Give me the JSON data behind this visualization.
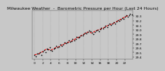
{
  "title": "Milwaukee Weather  -  Barometric Pressure per Hour (Last 24 Hours)",
  "bg_color": "#c8c8c8",
  "plot_bg": "#c8c8c8",
  "grid_color": "#888888",
  "dot_color": "#000000",
  "line_color": "#ff0000",
  "hours": [
    0,
    1,
    2,
    3,
    4,
    5,
    6,
    7,
    8,
    9,
    10,
    11,
    12,
    13,
    14,
    15,
    16,
    17,
    18,
    19,
    20,
    21,
    22,
    23
  ],
  "pressure": [
    29.45,
    29.47,
    29.52,
    29.58,
    29.55,
    29.6,
    29.63,
    29.68,
    29.72,
    29.75,
    29.8,
    29.85,
    29.9,
    29.95,
    29.93,
    29.98,
    30.01,
    30.05,
    30.1,
    30.13,
    30.18,
    30.23,
    30.28,
    30.32
  ],
  "scatter_hours": [
    0.0,
    0.3,
    0.7,
    1.0,
    1.3,
    1.7,
    2.0,
    2.3,
    2.7,
    3.0,
    3.3,
    3.7,
    4.0,
    4.3,
    4.7,
    5.0,
    5.3,
    5.7,
    6.0,
    6.3,
    6.7,
    7.0,
    7.3,
    7.7,
    8.0,
    8.3,
    8.7,
    9.0,
    9.3,
    9.7,
    10.0,
    10.3,
    10.7,
    11.0,
    11.3,
    11.7,
    12.0,
    12.3,
    12.7,
    13.0,
    13.3,
    13.7,
    14.0,
    14.3,
    14.7,
    15.0,
    15.3,
    15.7,
    16.0,
    16.3,
    16.7,
    17.0,
    17.3,
    17.7,
    18.0,
    18.3,
    18.7,
    19.0,
    19.3,
    19.7,
    20.0,
    20.3,
    20.7,
    21.0,
    21.3,
    21.7,
    22.0,
    22.3,
    22.7,
    23.0,
    23.3,
    23.7
  ],
  "scatter_pressure": [
    29.45,
    29.42,
    29.48,
    29.47,
    29.5,
    29.44,
    29.52,
    29.55,
    29.5,
    29.58,
    29.56,
    29.62,
    29.55,
    29.53,
    29.58,
    29.6,
    29.64,
    29.61,
    29.63,
    29.67,
    29.65,
    29.68,
    29.72,
    29.7,
    29.72,
    29.76,
    29.74,
    29.75,
    29.79,
    29.77,
    29.8,
    29.84,
    29.82,
    29.85,
    29.88,
    29.87,
    29.9,
    29.93,
    29.92,
    29.95,
    29.98,
    29.96,
    29.93,
    29.9,
    29.95,
    29.98,
    30.0,
    29.97,
    30.01,
    30.04,
    30.02,
    30.05,
    30.08,
    30.06,
    30.1,
    30.13,
    30.11,
    30.13,
    30.16,
    30.14,
    30.18,
    30.21,
    30.19,
    30.23,
    30.26,
    30.24,
    30.28,
    30.31,
    30.29,
    30.32,
    30.35,
    30.33
  ],
  "ylim": [
    29.35,
    30.42
  ],
  "yticks": [
    29.4,
    29.5,
    29.6,
    29.7,
    29.8,
    29.9,
    30.0,
    30.1,
    30.2,
    30.3
  ],
  "xlim": [
    -0.5,
    24.0
  ],
  "xticks": [
    0,
    2,
    4,
    6,
    8,
    10,
    12,
    14,
    16,
    18,
    20,
    22
  ],
  "title_fontsize": 4.5,
  "tick_fontsize": 3.2,
  "scatter_size": 1.5,
  "line_width": 0.7,
  "line_style": "--",
  "vgrid_positions": [
    0,
    2,
    4,
    6,
    8,
    10,
    12,
    14,
    16,
    18,
    20,
    22
  ]
}
